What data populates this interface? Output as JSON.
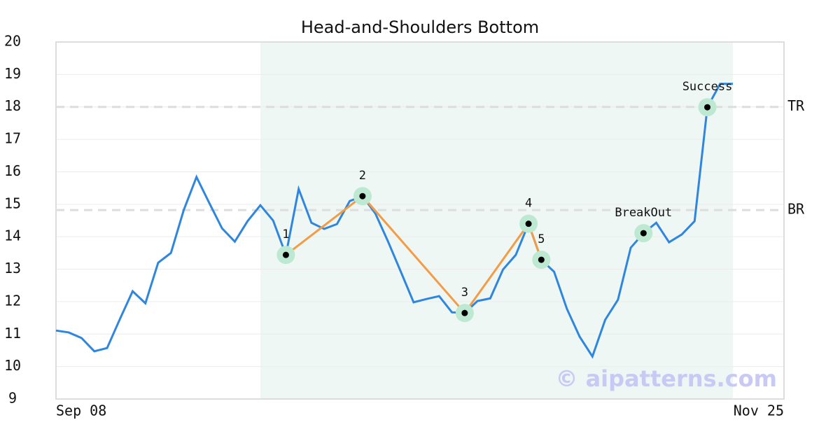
{
  "chart_data": {
    "type": "line",
    "title": "Head-and-Shoulders Bottom",
    "categories": [
      "Sep 08",
      null,
      null,
      null,
      null,
      null,
      null,
      null,
      null,
      null,
      null,
      null,
      null,
      null,
      null,
      null,
      null,
      null,
      null,
      null,
      null,
      null,
      null,
      null,
      null,
      null,
      null,
      null,
      null,
      null,
      null,
      null,
      null,
      null,
      null,
      null,
      null,
      null,
      null,
      null,
      null,
      null,
      null,
      null,
      null,
      null,
      null,
      null,
      null,
      null,
      null,
      null,
      null,
      null,
      null,
      null,
      null,
      "Nov 25"
    ],
    "values": [
      11.11,
      11.05,
      10.88,
      10.47,
      10.57,
      11.46,
      12.32,
      11.95,
      13.2,
      13.5,
      14.82,
      15.84,
      15.04,
      14.26,
      13.85,
      14.48,
      14.97,
      14.5,
      13.44,
      15.47,
      14.43,
      14.24,
      14.39,
      15.1,
      15.25,
      14.72,
      13.85,
      12.92,
      11.98,
      12.08,
      12.17,
      11.67,
      11.65,
      12.02,
      12.1,
      12.99,
      13.44,
      14.4,
      13.29,
      12.92,
      11.78,
      10.92,
      10.31,
      11.44,
      12.06,
      13.66,
      14.11,
      14.43,
      13.83,
      14.07,
      14.48,
      17.99,
      18.71,
      18.71,
      null,
      null,
      null,
      null
    ],
    "color": "#2e86de",
    "pattern_color": "#f39c45",
    "pattern_points": [
      {
        "label": "1",
        "index": 18
      },
      {
        "label": "2",
        "index": 24
      },
      {
        "label": "3",
        "index": 32
      },
      {
        "label": "4",
        "index": 37
      },
      {
        "label": "5",
        "index": 38
      }
    ],
    "signals": [
      {
        "label": "BreakOut",
        "index": 46
      },
      {
        "label": "Success",
        "index": 51
      }
    ],
    "levels": [
      {
        "label": "TR",
        "value": 18
      },
      {
        "label": "BR",
        "value": 14.82
      }
    ],
    "highlight_range": [
      16,
      53
    ],
    "ylim": [
      9,
      20
    ],
    "yticks": [
      9,
      10,
      11,
      12,
      13,
      14,
      15,
      16,
      17,
      18,
      19,
      20
    ],
    "grid": true,
    "watermark": "© aipatterns.com"
  }
}
